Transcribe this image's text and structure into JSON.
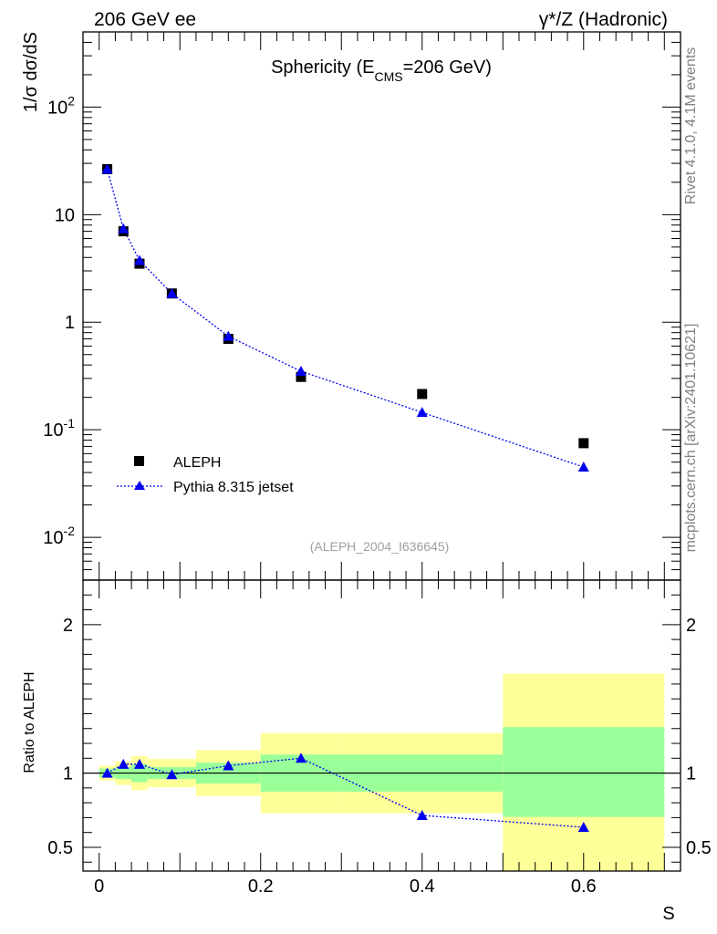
{
  "header": {
    "left": "206 GeV ee",
    "right": "γ*/Z (Hadronic)"
  },
  "side_labels": {
    "version": "Rivet 4.1.0,  4.1M events",
    "source": "mcplots.cern.ch [arXiv:2401.10621]"
  },
  "chart_data": [
    {
      "type": "scatter",
      "panel": "main",
      "title": "Sphericity (E_CMS=206 GeV)",
      "title_parts": {
        "pre": "Sphericity (E",
        "sub": "CMS",
        "post": "=206 GeV)"
      },
      "ylabel": "1/σ  dσ/dS",
      "yscale": "log",
      "ylim": [
        0.004,
        500
      ],
      "xlim": [
        -0.02,
        0.72
      ],
      "y_ticks": [
        {
          "value": 0.01,
          "base": "10",
          "exp": "-2"
        },
        {
          "value": 0.1,
          "base": "10",
          "exp": "-1"
        },
        {
          "value": 1,
          "label": "1"
        },
        {
          "value": 10,
          "label": "10"
        },
        {
          "value": 100,
          "base": "10",
          "exp": "2"
        }
      ],
      "watermark": "(ALEPH_2004_I636645)",
      "legend": [
        "ALEPH",
        "Pythia 8.315 jetset"
      ],
      "series": [
        {
          "name": "ALEPH",
          "marker": "square",
          "color": "#000000",
          "x": [
            0.01,
            0.03,
            0.05,
            0.09,
            0.16,
            0.25,
            0.4,
            0.6
          ],
          "y": [
            26.5,
            7.0,
            3.5,
            1.85,
            0.7,
            0.31,
            0.215,
            0.075
          ]
        },
        {
          "name": "Pythia 8.315 jetset",
          "marker": "triangle",
          "color": "#0000ee",
          "line": "dotted",
          "x": [
            0.01,
            0.03,
            0.05,
            0.09,
            0.16,
            0.25,
            0.4,
            0.6
          ],
          "y": [
            26.5,
            7.4,
            3.75,
            1.85,
            0.74,
            0.35,
            0.145,
            0.045
          ]
        }
      ]
    },
    {
      "type": "scatter",
      "panel": "ratio",
      "ylabel": "Ratio to ALEPH",
      "xlabel": "S",
      "ylim": [
        0.34,
        2.3
      ],
      "xlim": [
        -0.02,
        0.72
      ],
      "x_ticks": [
        0,
        0.2,
        0.4,
        0.6
      ],
      "x_tick_labels": [
        "0",
        "0.2",
        "0.4",
        "0.6"
      ],
      "y_ticks": [
        0.5,
        1,
        2
      ],
      "y_tick_labels": [
        "0.5",
        "1",
        "2"
      ],
      "reference": 1,
      "bands": {
        "bins": [
          0.0,
          0.02,
          0.04,
          0.06,
          0.12,
          0.2,
          0.3,
          0.5,
          0.7
        ],
        "green_lo": [
          0.97,
          0.96,
          0.94,
          0.96,
          0.93,
          0.875,
          0.875,
          0.705
        ],
        "green_hi": [
          1.03,
          1.04,
          1.06,
          1.04,
          1.07,
          1.125,
          1.125,
          1.31
        ],
        "yellow_lo": [
          0.95,
          0.92,
          0.885,
          0.905,
          0.845,
          0.73,
          0.73,
          0.34
        ],
        "yellow_hi": [
          1.05,
          1.08,
          1.115,
          1.095,
          1.155,
          1.27,
          1.27,
          1.67
        ]
      },
      "series": [
        {
          "name": "Pythia 8.315 jetset / ALEPH",
          "marker": "triangle",
          "color": "#0000ee",
          "line": "dotted",
          "x": [
            0.01,
            0.03,
            0.05,
            0.09,
            0.16,
            0.25,
            0.4,
            0.6
          ],
          "y": [
            1.0,
            1.06,
            1.06,
            0.99,
            1.05,
            1.1,
            0.715,
            0.635
          ]
        }
      ]
    }
  ]
}
